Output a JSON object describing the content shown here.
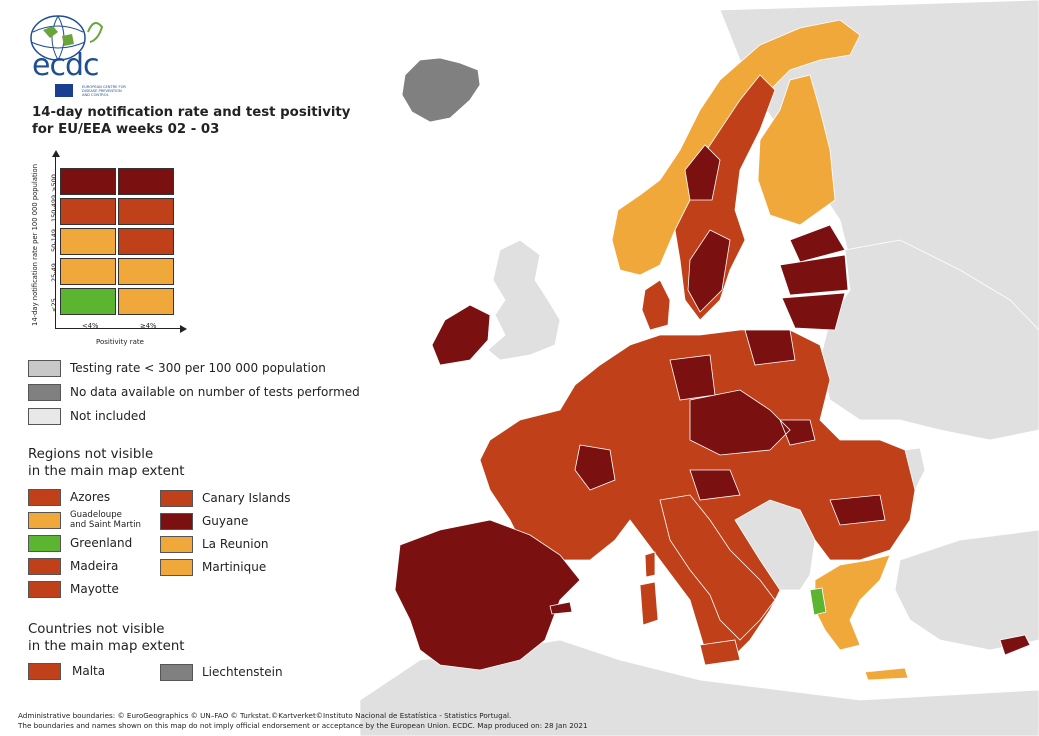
{
  "logo": {
    "wordmark": "ecdc",
    "subtitle": "EUROPEAN CENTRE FOR DISEASE PREVENTION AND CONTROL"
  },
  "title": {
    "line1": "14-day notification rate and test positivity",
    "line2": "for EU/EEA weeks 02 - 03"
  },
  "matrix": {
    "y_axis_label": "14-day notification rate per 100 000 population",
    "x_axis_label": "Positivity rate",
    "row_labels": [
      ">500",
      "150-499",
      "50-149",
      "25-49",
      "<25"
    ],
    "col_labels": [
      "<4%",
      "≥4%"
    ],
    "colors": [
      [
        "#7b1010",
        "#7b1010"
      ],
      [
        "#c0401a",
        "#c0401a"
      ],
      [
        "#f0a83a",
        "#c0401a"
      ],
      [
        "#f0a83a",
        "#f0a83a"
      ],
      [
        "#5cb531",
        "#f0a83a"
      ]
    ]
  },
  "legend_status": [
    {
      "label": "Testing rate < 300 per 100 000 population",
      "color": "#c8c8c8"
    },
    {
      "label": "No data available on number of tests performed",
      "color": "#808080"
    },
    {
      "label": "Not included",
      "color": "#e8e8e8"
    }
  ],
  "regions_title": {
    "line1": "Regions not visible",
    "line2": "in the main map extent"
  },
  "regions": [
    {
      "label": "Azores",
      "color": "#c0401a"
    },
    {
      "label": "Guadeloupe and Saint Martin",
      "line1": "Guadeloupe",
      "line2": "and Saint Martin",
      "color": "#f0a83a"
    },
    {
      "label": "Greenland",
      "color": "#5cb531"
    },
    {
      "label": "Madeira",
      "color": "#c0401a"
    },
    {
      "label": "Mayotte",
      "color": "#c0401a"
    },
    {
      "label": "Canary Islands",
      "color": "#c0401a"
    },
    {
      "label": "Guyane",
      "color": "#7b1010"
    },
    {
      "label": "La Reunion",
      "color": "#f0a83a"
    },
    {
      "label": "Martinique",
      "color": "#f0a83a"
    }
  ],
  "countries_title": {
    "line1": "Countries not visible",
    "line2": "in the main map extent"
  },
  "countries": [
    {
      "label": "Malta",
      "color": "#c0401a"
    },
    {
      "label": "Liechtenstein",
      "color": "#808080"
    }
  ],
  "footer": {
    "line1": "Administrative boundaries: © EuroGeographics © UN–FAO © Turkstat.©Kartverket©Instituto Nacional de Estatística - Statistics Portugal.",
    "line2": "The boundaries and names shown on this map do not imply official endorsement or acceptance by the European Union. ECDC. Map produced on: 28 Jan 2021"
  },
  "map_colors": {
    "dark_red": "#7b1010",
    "red": "#c0401a",
    "orange": "#f0a83a",
    "green": "#5cb531",
    "grey_no_data": "#808080",
    "not_included": "#e0e0e0",
    "sea": "#ffffff"
  }
}
